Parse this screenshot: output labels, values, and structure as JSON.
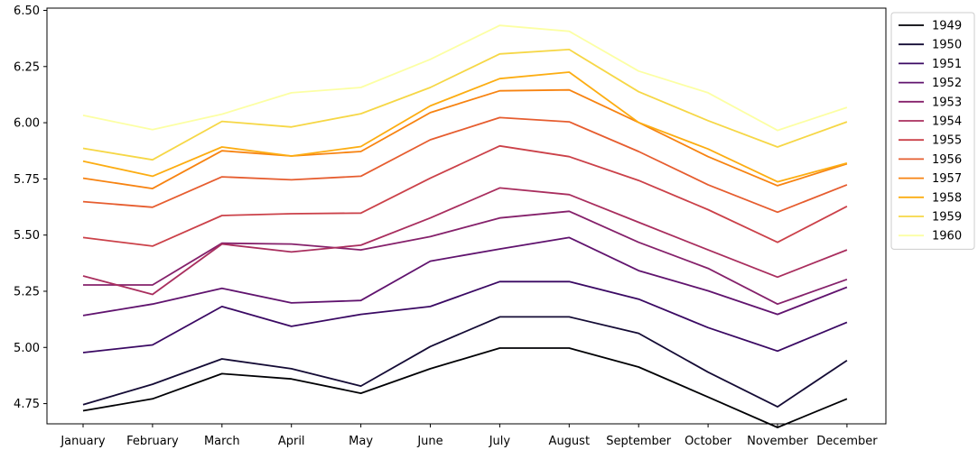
{
  "chart_data": {
    "type": "line",
    "title": "",
    "xlabel": "",
    "ylabel": "",
    "categories": [
      "January",
      "February",
      "March",
      "April",
      "May",
      "June",
      "July",
      "August",
      "September",
      "October",
      "November",
      "December"
    ],
    "ylim": [
      4.66,
      6.51
    ],
    "yticks": [
      "4.75",
      "5.00",
      "5.25",
      "5.50",
      "5.75",
      "6.00",
      "6.25",
      "6.50"
    ],
    "grid": false,
    "legend_position": "upper right, outside plot",
    "series": [
      {
        "name": "1949",
        "color": "#000004",
        "values": [
          4.718,
          4.771,
          4.883,
          4.86,
          4.796,
          4.905,
          4.997,
          4.997,
          4.913,
          4.779,
          4.644,
          4.771
        ]
      },
      {
        "name": "1950",
        "color": "#140b35",
        "values": [
          4.745,
          4.836,
          4.949,
          4.905,
          4.828,
          5.004,
          5.136,
          5.136,
          5.063,
          4.89,
          4.736,
          4.942
        ]
      },
      {
        "name": "1951",
        "color": "#3a0963",
        "values": [
          4.977,
          5.011,
          5.182,
          5.094,
          5.147,
          5.182,
          5.293,
          5.293,
          5.215,
          5.088,
          4.984,
          5.112
        ]
      },
      {
        "name": "1952",
        "color": "#60136e",
        "values": [
          5.142,
          5.193,
          5.263,
          5.198,
          5.209,
          5.384,
          5.438,
          5.489,
          5.342,
          5.252,
          5.147,
          5.268
        ]
      },
      {
        "name": "1953",
        "color": "#85216b",
        "values": [
          5.278,
          5.278,
          5.464,
          5.46,
          5.434,
          5.493,
          5.576,
          5.606,
          5.468,
          5.352,
          5.193,
          5.303
        ]
      },
      {
        "name": "1954",
        "color": "#a92e5e",
        "values": [
          5.318,
          5.236,
          5.46,
          5.425,
          5.455,
          5.576,
          5.71,
          5.68,
          5.557,
          5.434,
          5.313,
          5.434
        ]
      },
      {
        "name": "1955",
        "color": "#cb4149",
        "values": [
          5.489,
          5.451,
          5.587,
          5.595,
          5.598,
          5.753,
          5.897,
          5.849,
          5.743,
          5.613,
          5.468,
          5.628
        ]
      },
      {
        "name": "1956",
        "color": "#e65d2f",
        "values": [
          5.649,
          5.624,
          5.759,
          5.746,
          5.762,
          5.924,
          6.023,
          6.004,
          5.872,
          5.724,
          5.602,
          5.724
        ]
      },
      {
        "name": "1957",
        "color": "#f78311",
        "values": [
          5.753,
          5.707,
          5.875,
          5.852,
          5.872,
          6.045,
          6.142,
          6.146,
          6.001,
          5.849,
          5.72,
          5.817
        ]
      },
      {
        "name": "1958",
        "color": "#fcad12",
        "values": [
          5.829,
          5.762,
          5.892,
          5.852,
          5.894,
          6.075,
          6.196,
          6.225,
          6.001,
          5.883,
          5.737,
          5.82
        ]
      },
      {
        "name": "1959",
        "color": "#f6d746",
        "values": [
          5.886,
          5.835,
          6.006,
          5.981,
          6.04,
          6.157,
          6.306,
          6.326,
          6.138,
          6.009,
          5.892,
          6.004
        ]
      },
      {
        "name": "1960",
        "color": "#fcffa4",
        "values": [
          6.033,
          5.969,
          6.038,
          6.133,
          6.157,
          6.282,
          6.433,
          6.407,
          6.23,
          6.133,
          5.966,
          6.068
        ]
      }
    ]
  }
}
